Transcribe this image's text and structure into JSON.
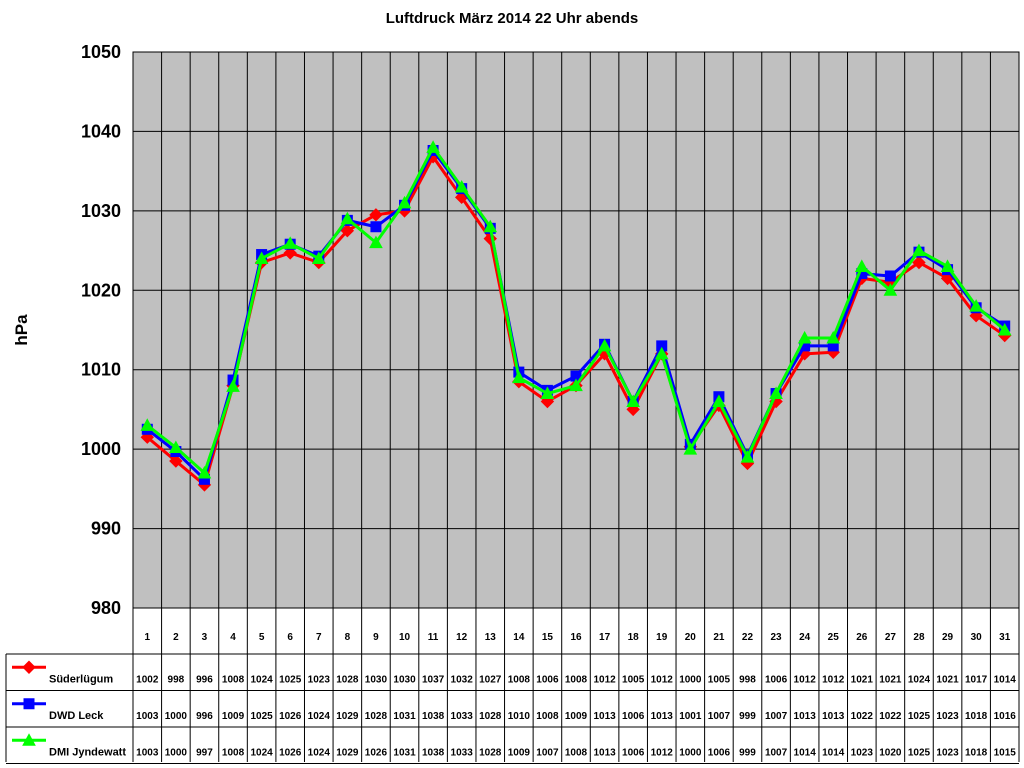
{
  "chart_data": {
    "type": "line",
    "title": "Luftdruck März 2014 22 Uhr abends",
    "ylabel": "hPa",
    "xlabel": "",
    "ylim": [
      980,
      1050
    ],
    "yticks": [
      980,
      990,
      1000,
      1010,
      1020,
      1030,
      1040,
      1050
    ],
    "grid": true,
    "legend_position": "data-table-left",
    "categories": [
      "1",
      "2",
      "3",
      "4",
      "5",
      "6",
      "7",
      "8",
      "9",
      "10",
      "11",
      "12",
      "13",
      "14",
      "15",
      "16",
      "17",
      "18",
      "19",
      "20",
      "21",
      "22",
      "23",
      "24",
      "25",
      "26",
      "27",
      "28",
      "29",
      "30",
      "31"
    ],
    "series": [
      {
        "name": "Süderlügum",
        "color": "#ff0000",
        "marker": "diamond",
        "values": [
          1002,
          998,
          996,
          1008,
          1024,
          1025,
          1023,
          1028,
          1030,
          1030,
          1037,
          1032,
          1027,
          1008,
          1006,
          1008,
          1012,
          1005,
          1012,
          1000,
          1005,
          998,
          1006,
          1012,
          1012,
          1021,
          1021,
          1024,
          1021,
          1017,
          1014
        ],
        "plot_values": [
          1001.5,
          998.5,
          995.5,
          1008,
          1023.5,
          1024.7,
          1023.5,
          1027.5,
          1029.5,
          1030,
          1036.8,
          1031.7,
          1026.5,
          1008.5,
          1006,
          1008,
          1012,
          1005,
          1012,
          1000.3,
          1005.5,
          998.2,
          1006,
          1012,
          1012.2,
          1021.5,
          1021,
          1023.5,
          1021.5,
          1016.8,
          1014.3
        ]
      },
      {
        "name": "DWD Leck",
        "color": "#0000ff",
        "marker": "square",
        "values": [
          1003,
          1000,
          996,
          1009,
          1025,
          1026,
          1024,
          1029,
          1028,
          1031,
          1038,
          1033,
          1028,
          1010,
          1008,
          1009,
          1013,
          1006,
          1013,
          1001,
          1007,
          999,
          1007,
          1013,
          1013,
          1022,
          1022,
          1025,
          1023,
          1018,
          1016
        ],
        "plot_values": [
          1002.5,
          999.7,
          996.2,
          1008.7,
          1024.5,
          1025.8,
          1024.3,
          1028.8,
          1028,
          1030.7,
          1037.6,
          1032.8,
          1027.8,
          1009.7,
          1007.4,
          1009.2,
          1013.2,
          1006,
          1013,
          1000.6,
          1006.6,
          999.2,
          1007,
          1013,
          1013,
          1022.1,
          1021.8,
          1024.8,
          1022.6,
          1017.8,
          1015.5
        ]
      },
      {
        "name": "DMI Jyndewatt",
        "color": "#00ff00",
        "marker": "triangle",
        "values": [
          1003,
          1000,
          997,
          1008,
          1024,
          1026,
          1024,
          1029,
          1026,
          1031,
          1038,
          1033,
          1028,
          1009,
          1007,
          1008,
          1013,
          1006,
          1012,
          1000,
          1006,
          999,
          1007,
          1014,
          1014,
          1023,
          1020,
          1025,
          1023,
          1018,
          1015
        ],
        "plot_values": [
          1003,
          1000.2,
          997,
          1007.9,
          1024,
          1025.9,
          1024,
          1029,
          1026,
          1031,
          1038,
          1033,
          1028,
          1009,
          1007,
          1008,
          1013,
          1006,
          1012,
          1000,
          1006,
          999,
          1007,
          1014,
          1014,
          1023,
          1020,
          1025,
          1023,
          1018,
          1015
        ]
      }
    ]
  }
}
